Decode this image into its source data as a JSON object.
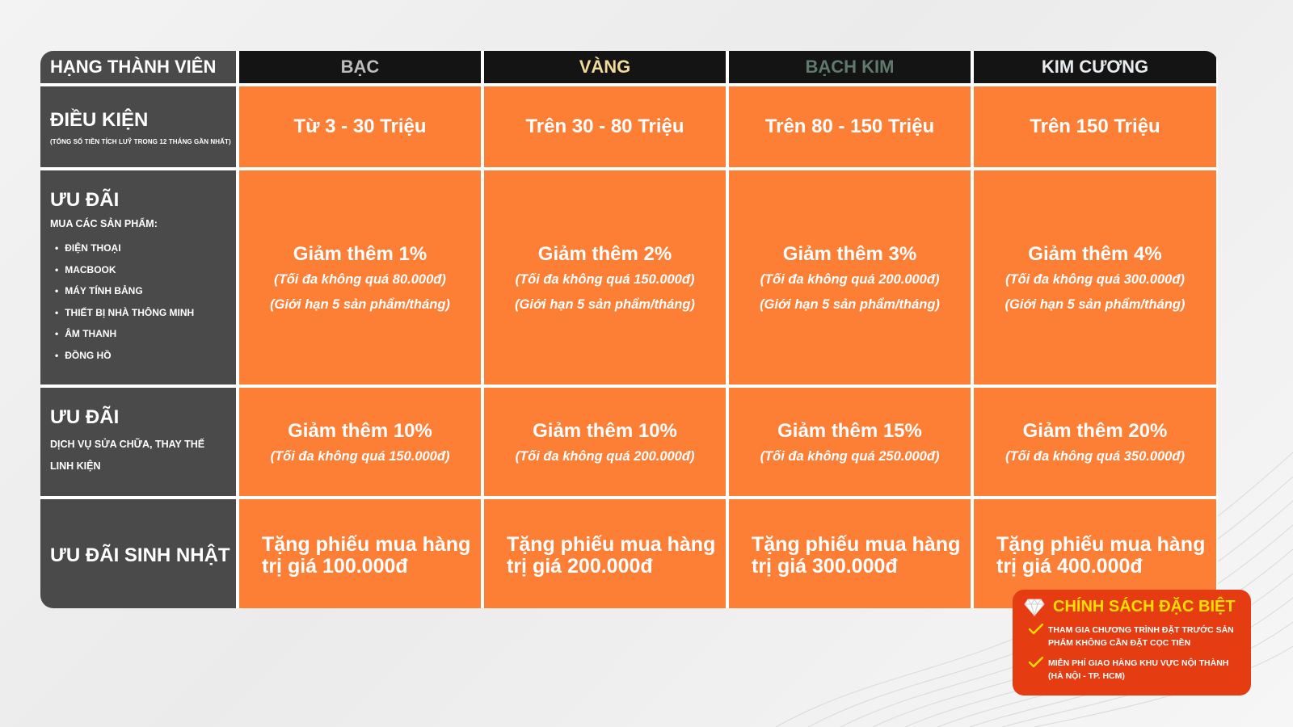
{
  "header": {
    "corner": "HẠNG THÀNH VIÊN",
    "tiers": [
      {
        "label": "BẠC",
        "color": "#bdbdbd"
      },
      {
        "label": "VÀNG",
        "color": "#f2da9c"
      },
      {
        "label": "BẠCH KIM",
        "color": "#5f7a6c"
      },
      {
        "label": "KIM CƯƠNG",
        "color": "#e8ecee"
      }
    ]
  },
  "rows": {
    "condition": {
      "title": "ĐIỀU KIỆN",
      "subtitle": "(TỔNG SỐ TIỀN TÍCH LUỸ TRONG 12 THÁNG GẦN NHẤT)",
      "values": [
        "Từ 3 - 30 Triệu",
        "Trên 30 - 80 Triệu",
        "Trên 80 - 150 Triệu",
        "Trên 150 Triệu"
      ]
    },
    "product_offer": {
      "title": "ƯU ĐÃI",
      "intro": "MUA CÁC SẢN PHẨM:",
      "items": [
        "ĐIỆN THOẠI",
        "MACBOOK",
        "MÁY TÍNH BẢNG",
        "THIẾT BỊ NHÀ THÔNG MINH",
        "ÂM THANH",
        "ĐỒNG HỒ"
      ],
      "values": [
        {
          "main": "Giảm thêm 1%",
          "cap": "(Tối đa không quá 80.000đ)",
          "limit": "(Giới hạn 5 sản phẩm/tháng)"
        },
        {
          "main": "Giảm thêm 2%",
          "cap": "(Tối đa không quá 150.000đ)",
          "limit": "(Giới hạn 5 sản phẩm/tháng)"
        },
        {
          "main": "Giảm thêm 3%",
          "cap": "(Tối đa không quá 200.000đ)",
          "limit": "(Giới hạn 5 sản phẩm/tháng)"
        },
        {
          "main": "Giảm thêm 4%",
          "cap": "(Tối đa không quá 300.000đ)",
          "limit": "(Giới hạn 5 sản phẩm/tháng)"
        }
      ]
    },
    "service_offer": {
      "title": "ƯU ĐÃI",
      "desc_line1": "DỊCH VỤ SỬA CHỮA, THAY THẾ",
      "desc_line2": "LINH KIỆN",
      "values": [
        {
          "main": "Giảm thêm 10%",
          "cap": "(Tối đa không quá 150.000đ)"
        },
        {
          "main": "Giảm thêm 10%",
          "cap": "(Tối đa không quá 200.000đ)"
        },
        {
          "main": "Giảm thêm 15%",
          "cap": "(Tối đa không quá 250.000đ)"
        },
        {
          "main": "Giảm thêm 20%",
          "cap": "(Tối đa không quá 350.000đ)"
        }
      ]
    },
    "birthday": {
      "title": "ƯU ĐÃI SINH NHẬT",
      "values": [
        {
          "line1": "Tặng phiếu mua hàng",
          "line2": "trị giá 100.000đ"
        },
        {
          "line1": "Tặng phiếu mua hàng",
          "line2": "trị giá 200.000đ"
        },
        {
          "line1": "Tặng phiếu mua hàng",
          "line2": "trị giá 300.000đ"
        },
        {
          "line1": "Tặng phiếu mua hàng",
          "line2": "trị giá 400.000đ"
        }
      ]
    }
  },
  "special_policy": {
    "title": "CHÍNH SÁCH ĐẶC BIỆT",
    "items": [
      {
        "line1": "THAM GIA CHƯƠNG TRÌNH ĐẶT TRƯỚC SẢN",
        "line2": "PHẨM KHÔNG CẦN ĐẶT CỌC TIỀN"
      },
      {
        "line1": "MIỄN PHÍ GIAO HÀNG KHU VỰC NỘI THÀNH",
        "line2": "(HÀ NỘI - TP. HCM)"
      }
    ]
  },
  "colors": {
    "accent_orange": "#fd7e35",
    "label_gray": "#4a4a4a",
    "header_black": "#141414",
    "special_red": "#e63c12",
    "special_title_yellow": "#ffde00"
  }
}
